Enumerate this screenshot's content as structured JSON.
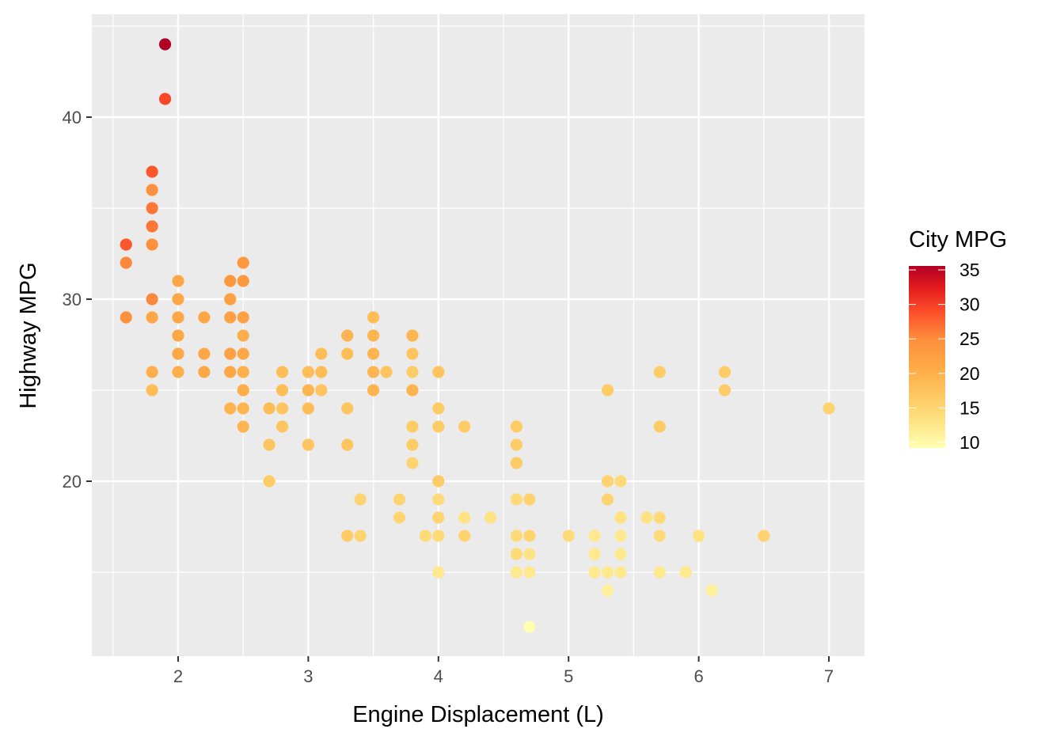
{
  "chart_data": {
    "type": "scatter",
    "title": "",
    "xlabel": "Engine Displacement (L)",
    "ylabel": "Highway MPG",
    "xlim": [
      1.33,
      7.27
    ],
    "ylim": [
      10.4,
      45.6
    ],
    "x_ticks": [
      2,
      3,
      4,
      5,
      6,
      7
    ],
    "y_ticks": [
      20,
      30,
      40
    ],
    "grid": true,
    "color_legend": {
      "title": "City MPG",
      "range": [
        9,
        35
      ],
      "ticks": [
        10,
        15,
        20,
        25,
        30,
        35
      ],
      "low_color": "#FFFFB2",
      "mid_color": "#FD8D3C",
      "high_color": "#B10026",
      "position": "right"
    },
    "points": [
      {
        "x": 1.9,
        "y": 44,
        "c": 35
      },
      {
        "x": 1.9,
        "y": 41,
        "c": 29
      },
      {
        "x": 1.8,
        "y": 37,
        "c": 28
      },
      {
        "x": 1.8,
        "y": 36,
        "c": 24
      },
      {
        "x": 1.8,
        "y": 35,
        "c": 26
      },
      {
        "x": 1.8,
        "y": 34,
        "c": 26
      },
      {
        "x": 1.8,
        "y": 33,
        "c": 24
      },
      {
        "x": 1.8,
        "y": 30,
        "c": 25
      },
      {
        "x": 1.8,
        "y": 29,
        "c": 21
      },
      {
        "x": 1.8,
        "y": 26,
        "c": 20
      },
      {
        "x": 1.8,
        "y": 25,
        "c": 18
      },
      {
        "x": 1.6,
        "y": 33,
        "c": 28
      },
      {
        "x": 1.6,
        "y": 32,
        "c": 25
      },
      {
        "x": 1.6,
        "y": 29,
        "c": 24
      },
      {
        "x": 2.0,
        "y": 31,
        "c": 21
      },
      {
        "x": 2.0,
        "y": 30,
        "c": 21
      },
      {
        "x": 2.0,
        "y": 29,
        "c": 21
      },
      {
        "x": 2.0,
        "y": 28,
        "c": 21
      },
      {
        "x": 2.0,
        "y": 27,
        "c": 21
      },
      {
        "x": 2.0,
        "y": 26,
        "c": 20
      },
      {
        "x": 2.2,
        "y": 29,
        "c": 21
      },
      {
        "x": 2.2,
        "y": 27,
        "c": 21
      },
      {
        "x": 2.2,
        "y": 26,
        "c": 21
      },
      {
        "x": 2.4,
        "y": 31,
        "c": 23
      },
      {
        "x": 2.4,
        "y": 30,
        "c": 22
      },
      {
        "x": 2.4,
        "y": 29,
        "c": 22
      },
      {
        "x": 2.4,
        "y": 27,
        "c": 22
      },
      {
        "x": 2.4,
        "y": 26,
        "c": 21
      },
      {
        "x": 2.4,
        "y": 24,
        "c": 19
      },
      {
        "x": 2.5,
        "y": 32,
        "c": 23
      },
      {
        "x": 2.5,
        "y": 31,
        "c": 23
      },
      {
        "x": 2.5,
        "y": 29,
        "c": 22
      },
      {
        "x": 2.5,
        "y": 28,
        "c": 20
      },
      {
        "x": 2.5,
        "y": 27,
        "c": 21
      },
      {
        "x": 2.5,
        "y": 26,
        "c": 20
      },
      {
        "x": 2.5,
        "y": 25,
        "c": 20
      },
      {
        "x": 2.5,
        "y": 24,
        "c": 19
      },
      {
        "x": 2.5,
        "y": 23,
        "c": 19
      },
      {
        "x": 2.7,
        "y": 24,
        "c": 18
      },
      {
        "x": 2.7,
        "y": 22,
        "c": 17
      },
      {
        "x": 2.7,
        "y": 20,
        "c": 16
      },
      {
        "x": 2.8,
        "y": 26,
        "c": 18
      },
      {
        "x": 2.8,
        "y": 25,
        "c": 18
      },
      {
        "x": 2.8,
        "y": 24,
        "c": 17
      },
      {
        "x": 2.8,
        "y": 23,
        "c": 17
      },
      {
        "x": 3.0,
        "y": 26,
        "c": 18
      },
      {
        "x": 3.0,
        "y": 25,
        "c": 19
      },
      {
        "x": 3.0,
        "y": 24,
        "c": 18
      },
      {
        "x": 3.0,
        "y": 22,
        "c": 17
      },
      {
        "x": 3.1,
        "y": 27,
        "c": 18
      },
      {
        "x": 3.1,
        "y": 26,
        "c": 18
      },
      {
        "x": 3.1,
        "y": 25,
        "c": 17
      },
      {
        "x": 3.3,
        "y": 28,
        "c": 19
      },
      {
        "x": 3.3,
        "y": 27,
        "c": 18
      },
      {
        "x": 3.3,
        "y": 24,
        "c": 17
      },
      {
        "x": 3.3,
        "y": 22,
        "c": 17
      },
      {
        "x": 3.3,
        "y": 17,
        "c": 16
      },
      {
        "x": 3.4,
        "y": 19,
        "c": 15
      },
      {
        "x": 3.4,
        "y": 17,
        "c": 15
      },
      {
        "x": 3.5,
        "y": 29,
        "c": 18
      },
      {
        "x": 3.5,
        "y": 28,
        "c": 19
      },
      {
        "x": 3.5,
        "y": 27,
        "c": 19
      },
      {
        "x": 3.5,
        "y": 26,
        "c": 19
      },
      {
        "x": 3.5,
        "y": 25,
        "c": 19
      },
      {
        "x": 3.6,
        "y": 26,
        "c": 17
      },
      {
        "x": 3.7,
        "y": 19,
        "c": 15
      },
      {
        "x": 3.7,
        "y": 18,
        "c": 15
      },
      {
        "x": 3.8,
        "y": 28,
        "c": 19
      },
      {
        "x": 3.8,
        "y": 27,
        "c": 17
      },
      {
        "x": 3.8,
        "y": 26,
        "c": 16
      },
      {
        "x": 3.8,
        "y": 25,
        "c": 19
      },
      {
        "x": 3.8,
        "y": 23,
        "c": 16
      },
      {
        "x": 3.8,
        "y": 22,
        "c": 16
      },
      {
        "x": 3.8,
        "y": 21,
        "c": 15
      },
      {
        "x": 3.9,
        "y": 17,
        "c": 14
      },
      {
        "x": 4.0,
        "y": 26,
        "c": 17
      },
      {
        "x": 4.0,
        "y": 24,
        "c": 16
      },
      {
        "x": 4.0,
        "y": 23,
        "c": 16
      },
      {
        "x": 4.0,
        "y": 20,
        "c": 16
      },
      {
        "x": 4.0,
        "y": 19,
        "c": 14
      },
      {
        "x": 4.0,
        "y": 18,
        "c": 15
      },
      {
        "x": 4.0,
        "y": 17,
        "c": 14
      },
      {
        "x": 4.0,
        "y": 15,
        "c": 12
      },
      {
        "x": 4.2,
        "y": 23,
        "c": 16
      },
      {
        "x": 4.2,
        "y": 18,
        "c": 13
      },
      {
        "x": 4.2,
        "y": 17,
        "c": 15
      },
      {
        "x": 4.4,
        "y": 18,
        "c": 13
      },
      {
        "x": 4.6,
        "y": 23,
        "c": 16
      },
      {
        "x": 4.6,
        "y": 22,
        "c": 16
      },
      {
        "x": 4.6,
        "y": 21,
        "c": 16
      },
      {
        "x": 4.6,
        "y": 19,
        "c": 14
      },
      {
        "x": 4.6,
        "y": 17,
        "c": 14
      },
      {
        "x": 4.6,
        "y": 16,
        "c": 14
      },
      {
        "x": 4.6,
        "y": 15,
        "c": 12
      },
      {
        "x": 4.7,
        "y": 19,
        "c": 15
      },
      {
        "x": 4.7,
        "y": 17,
        "c": 15
      },
      {
        "x": 4.7,
        "y": 16,
        "c": 13
      },
      {
        "x": 4.7,
        "y": 15,
        "c": 12
      },
      {
        "x": 4.7,
        "y": 12,
        "c": 9
      },
      {
        "x": 5.0,
        "y": 17,
        "c": 14
      },
      {
        "x": 5.2,
        "y": 17,
        "c": 12
      },
      {
        "x": 5.2,
        "y": 16,
        "c": 12
      },
      {
        "x": 5.2,
        "y": 15,
        "c": 12
      },
      {
        "x": 5.3,
        "y": 25,
        "c": 16
      },
      {
        "x": 5.3,
        "y": 20,
        "c": 15
      },
      {
        "x": 5.3,
        "y": 19,
        "c": 15
      },
      {
        "x": 5.3,
        "y": 15,
        "c": 12
      },
      {
        "x": 5.3,
        "y": 14,
        "c": 11
      },
      {
        "x": 5.4,
        "y": 20,
        "c": 14
      },
      {
        "x": 5.4,
        "y": 18,
        "c": 13
      },
      {
        "x": 5.4,
        "y": 17,
        "c": 12
      },
      {
        "x": 5.4,
        "y": 16,
        "c": 12
      },
      {
        "x": 5.4,
        "y": 15,
        "c": 12
      },
      {
        "x": 5.6,
        "y": 18,
        "c": 13
      },
      {
        "x": 5.7,
        "y": 26,
        "c": 16
      },
      {
        "x": 5.7,
        "y": 23,
        "c": 16
      },
      {
        "x": 5.7,
        "y": 18,
        "c": 14
      },
      {
        "x": 5.7,
        "y": 17,
        "c": 14
      },
      {
        "x": 5.7,
        "y": 15,
        "c": 12
      },
      {
        "x": 5.9,
        "y": 15,
        "c": 12
      },
      {
        "x": 6.0,
        "y": 17,
        "c": 13
      },
      {
        "x": 6.1,
        "y": 14,
        "c": 11
      },
      {
        "x": 6.2,
        "y": 26,
        "c": 16
      },
      {
        "x": 6.2,
        "y": 25,
        "c": 16
      },
      {
        "x": 6.5,
        "y": 17,
        "c": 15
      },
      {
        "x": 7.0,
        "y": 24,
        "c": 15
      }
    ]
  },
  "axes": {
    "x_title": "Engine Displacement (L)",
    "y_title": "Highway MPG",
    "x_tick_labels": [
      "2",
      "3",
      "4",
      "5",
      "6",
      "7"
    ],
    "y_tick_labels": [
      "20",
      "30",
      "40"
    ]
  },
  "legend": {
    "title": "City MPG",
    "labels": [
      "35",
      "30",
      "25",
      "20",
      "15",
      "10"
    ]
  },
  "colors": {
    "panel_bg": "#EBEBEB",
    "grid": "#FFFFFF",
    "tick_text": "#4D4D4D"
  }
}
